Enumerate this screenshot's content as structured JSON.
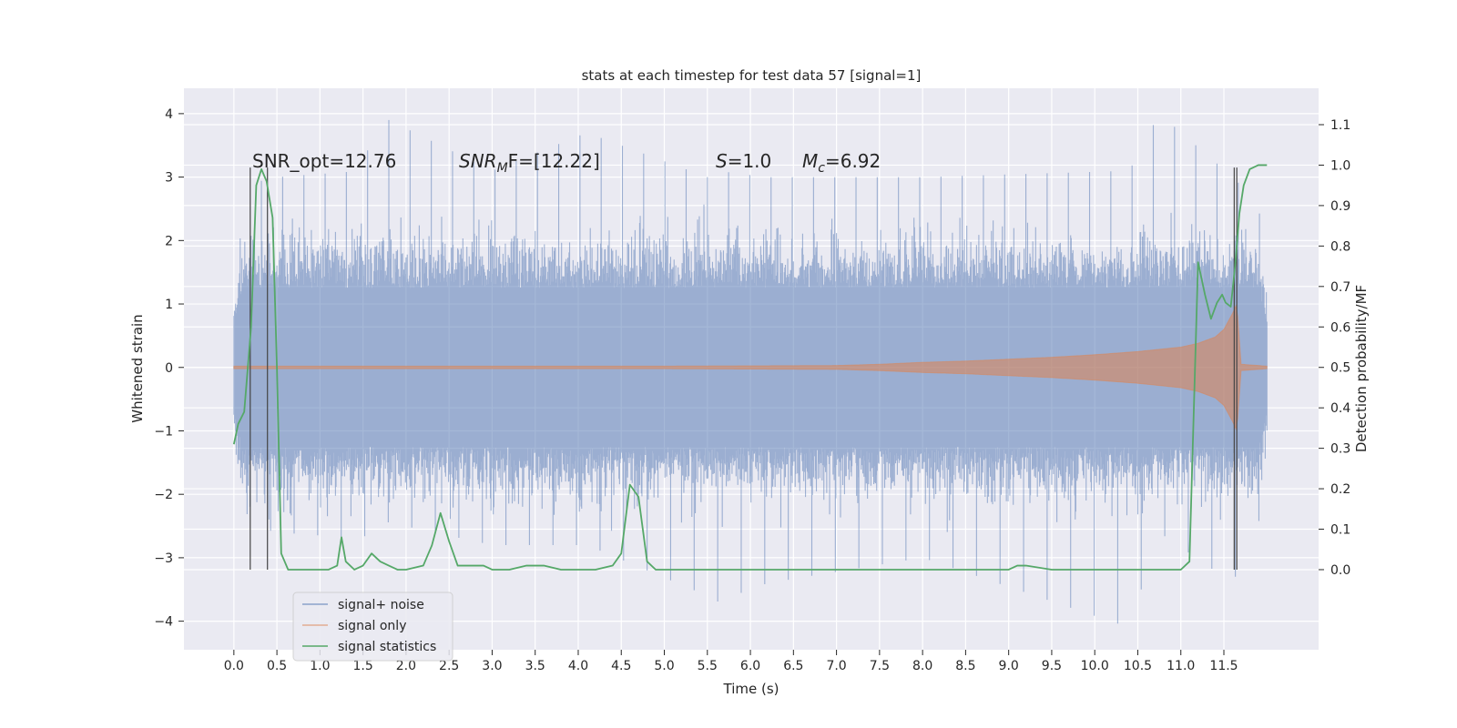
{
  "chart_data": {
    "type": "line",
    "title": "stats at each timestep for test data 57 [signal=1]",
    "xlabel": "Time (s)",
    "ylabel": "Whitened strain",
    "ylabel_right": "Detection probability/MF",
    "xlim": [
      -0.58,
      12.6
    ],
    "ylim": [
      -4.45,
      4.4
    ],
    "ylim_right": [
      -0.198,
      1.19
    ],
    "x_ticks": [
      "0.0",
      "0.5",
      "1.0",
      "1.5",
      "2.0",
      "2.5",
      "3.0",
      "3.5",
      "4.0",
      "4.5",
      "5.0",
      "5.5",
      "6.0",
      "6.5",
      "7.0",
      "7.5",
      "8.0",
      "8.5",
      "9.0",
      "9.5",
      "10.0",
      "10.5",
      "11.0",
      "11.5"
    ],
    "y_ticks": [
      "4",
      "3",
      "2",
      "1",
      "0",
      "−1",
      "−2",
      "−3",
      "−4"
    ],
    "y_ticks_right": [
      "1.1",
      "1.0",
      "0.9",
      "0.8",
      "0.7",
      "0.6",
      "0.5",
      "0.4",
      "0.3",
      "0.2",
      "0.1",
      "0.0"
    ],
    "grid": true,
    "legend_position": "lower-left",
    "annotations": [
      {
        "id": "snr-opt",
        "text": "SNR_opt=12.76"
      },
      {
        "id": "snr-mf",
        "text": "SNR_MF=[12.22]",
        "symbol": "SNR",
        "sub": "M",
        "rest": "F=[12.22]"
      },
      {
        "id": "s-stat",
        "text": "S=1.0",
        "symbol": "S",
        "rest": "=1.0"
      },
      {
        "id": "mc",
        "text": "M_c=6.92",
        "symbol": "M",
        "sub": "c",
        "rest": "=6.92"
      }
    ],
    "vertical_markers": [
      0.19,
      0.39,
      11.62,
      11.65
    ],
    "series": [
      {
        "name": "signal+ noise",
        "color": "#4c72b0",
        "opacity": 0.5,
        "axis": "left",
        "x_range": [
          0.0,
          12.0
        ],
        "envelope": [
          {
            "x": 0.0,
            "min": -1.5,
            "max": 1.3
          },
          {
            "x": 0.1,
            "min": -2.1,
            "max": 2.3
          },
          {
            "x": 0.2,
            "min": -2.5,
            "max": 2.9
          },
          {
            "x": 0.5,
            "min": -2.6,
            "max": 3.0
          },
          {
            "x": 1.5,
            "min": -2.7,
            "max": 3.1
          },
          {
            "x": 1.65,
            "min": -2.4,
            "max": 4.0
          },
          {
            "x": 3.0,
            "min": -2.8,
            "max": 3.1
          },
          {
            "x": 4.1,
            "min": -2.8,
            "max": 3.7
          },
          {
            "x": 5.5,
            "min": -3.6,
            "max": 3.0
          },
          {
            "x": 5.6,
            "min": -3.7,
            "max": 3.1
          },
          {
            "x": 6.2,
            "min": -3.4,
            "max": 3.0
          },
          {
            "x": 8.0,
            "min": -3.0,
            "max": 3.0
          },
          {
            "x": 10.4,
            "min": -4.1,
            "max": 3.1
          },
          {
            "x": 10.75,
            "min": -2.6,
            "max": 4.0
          },
          {
            "x": 11.6,
            "min": -3.4,
            "max": 3.0
          },
          {
            "x": 11.9,
            "min": -2.5,
            "max": 2.6
          },
          {
            "x": 12.0,
            "min": -1.3,
            "max": 1.3
          }
        ]
      },
      {
        "name": "signal only",
        "color": "#dd8452",
        "opacity": 0.5,
        "axis": "left",
        "x": [
          0.0,
          5.0,
          7.0,
          7.5,
          8.0,
          8.5,
          9.0,
          9.5,
          10.0,
          10.5,
          11.0,
          11.2,
          11.4,
          11.5,
          11.6,
          11.65,
          11.7,
          12.0
        ],
        "amplitude": [
          0.02,
          0.02,
          0.03,
          0.05,
          0.08,
          0.1,
          0.13,
          0.16,
          0.2,
          0.25,
          0.32,
          0.38,
          0.48,
          0.6,
          0.85,
          1.0,
          0.05,
          0.02
        ]
      },
      {
        "name": "signal statistics",
        "color": "#55a868",
        "axis": "right",
        "x": [
          0.0,
          0.05,
          0.12,
          0.2,
          0.26,
          0.32,
          0.38,
          0.45,
          0.5,
          0.55,
          0.63,
          0.8,
          1.0,
          1.1,
          1.2,
          1.25,
          1.3,
          1.4,
          1.5,
          1.6,
          1.7,
          1.8,
          1.9,
          2.0,
          2.2,
          2.3,
          2.4,
          2.5,
          2.6,
          2.7,
          2.8,
          2.9,
          3.0,
          3.2,
          3.4,
          3.6,
          3.8,
          4.0,
          4.2,
          4.4,
          4.5,
          4.6,
          4.7,
          4.8,
          4.9,
          5.0,
          5.5,
          6.0,
          6.3,
          6.5,
          7.0,
          7.5,
          8.0,
          8.5,
          9.0,
          9.1,
          9.2,
          9.5,
          10.0,
          10.5,
          11.0,
          11.1,
          11.2,
          11.28,
          11.35,
          11.42,
          11.48,
          11.52,
          11.58,
          11.63,
          11.68,
          11.73,
          11.8,
          11.9,
          12.0
        ],
        "values": [
          0.31,
          0.36,
          0.39,
          0.6,
          0.95,
          0.99,
          0.96,
          0.87,
          0.5,
          0.04,
          0.0,
          0.0,
          0.0,
          0.0,
          0.01,
          0.08,
          0.02,
          0.0,
          0.01,
          0.04,
          0.02,
          0.01,
          0.0,
          0.0,
          0.01,
          0.06,
          0.14,
          0.07,
          0.01,
          0.01,
          0.01,
          0.01,
          0.0,
          0.0,
          0.01,
          0.01,
          0.0,
          0.0,
          0.0,
          0.01,
          0.04,
          0.21,
          0.18,
          0.02,
          0.0,
          0.0,
          0.0,
          0.0,
          0.0,
          0.0,
          0.0,
          0.0,
          0.0,
          0.0,
          0.0,
          0.01,
          0.01,
          0.0,
          0.0,
          0.0,
          0.0,
          0.02,
          0.76,
          0.68,
          0.62,
          0.66,
          0.68,
          0.66,
          0.65,
          0.75,
          0.88,
          0.95,
          0.99,
          1.0,
          1.0
        ]
      }
    ]
  }
}
